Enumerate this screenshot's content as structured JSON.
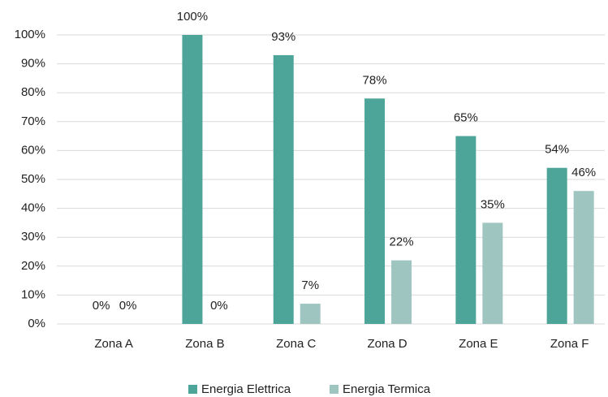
{
  "chart_data": {
    "type": "bar",
    "categories": [
      "Zona A",
      "Zona B",
      "Zona C",
      "Zona D",
      "Zona E",
      "Zona F"
    ],
    "series": [
      {
        "name": "Energia Elettrica",
        "color": "#4da59a",
        "values": [
          0,
          100,
          93,
          78,
          65,
          54
        ],
        "value_labels": [
          "0%",
          "100%",
          "93%",
          "78%",
          "65%",
          "54%"
        ]
      },
      {
        "name": "Energia Termica",
        "color": "#9fc5c1",
        "values": [
          0,
          0,
          7,
          22,
          35,
          46
        ],
        "value_labels": [
          "0%",
          "0%",
          "7%",
          "22%",
          "35%",
          "46%"
        ]
      }
    ],
    "ylim": [
      0,
      100
    ],
    "yticks": [
      {
        "value": 0,
        "label": "0%"
      },
      {
        "value": 10,
        "label": "10%"
      },
      {
        "value": 20,
        "label": "20%"
      },
      {
        "value": 30,
        "label": "30%"
      },
      {
        "value": 40,
        "label": "40%"
      },
      {
        "value": 50,
        "label": "50%"
      },
      {
        "value": 60,
        "label": "60%"
      },
      {
        "value": 70,
        "label": "70%"
      },
      {
        "value": 80,
        "label": "80%"
      },
      {
        "value": 90,
        "label": "90%"
      },
      {
        "value": 100,
        "label": "100%"
      }
    ],
    "grid": true,
    "legend": "bottom"
  }
}
